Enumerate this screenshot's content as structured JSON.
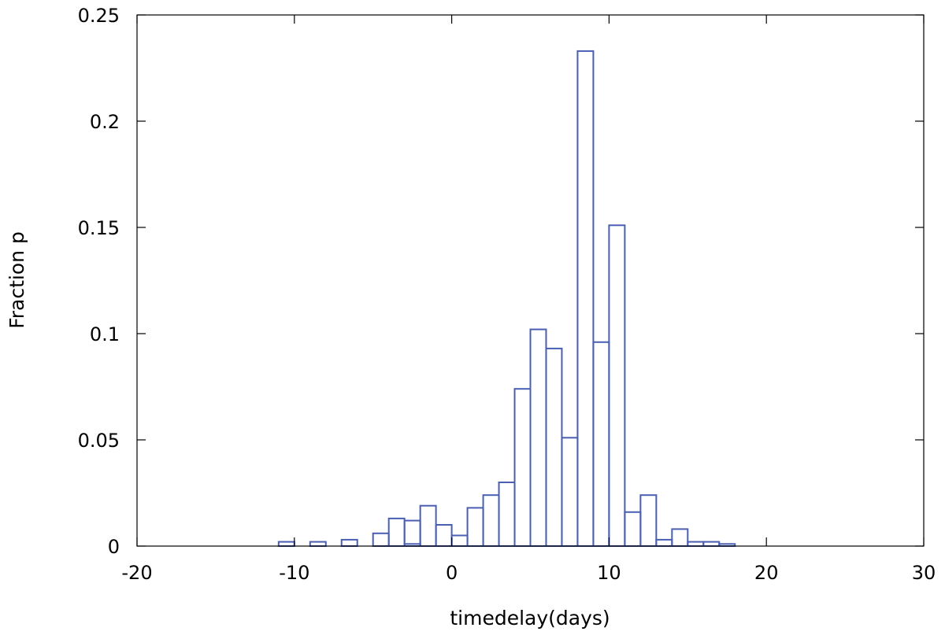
{
  "chart_data": {
    "type": "bar",
    "title": "",
    "xlabel": "timedelay(days)",
    "ylabel": "Fraction p",
    "xlim": [
      -20,
      30
    ],
    "ylim": [
      0,
      0.25
    ],
    "xticks": [
      "-20",
      "-10",
      "0",
      "10",
      "20",
      "30"
    ],
    "yticks": [
      "0",
      "0.05",
      "0.1",
      "0.15",
      "0.2",
      "0.25"
    ],
    "grid": false,
    "legend": "none",
    "bar_color": "#4a5fb4",
    "bin_width": 1,
    "bins": [
      {
        "x": -10.5,
        "value": 0.002
      },
      {
        "x": -8.5,
        "value": 0.002
      },
      {
        "x": -6.5,
        "value": 0.003
      },
      {
        "x": -4.5,
        "value": 0.006
      },
      {
        "x": -3.5,
        "value": 0.013
      },
      {
        "x": -2.5,
        "value": 0.012
      },
      {
        "x": -1.5,
        "value": 0.019
      },
      {
        "x": -0.5,
        "value": 0.01
      },
      {
        "x": 0.5,
        "value": 0.005
      },
      {
        "x": 1.5,
        "value": 0.018
      },
      {
        "x": 2.5,
        "value": 0.024
      },
      {
        "x": 3.5,
        "value": 0.03
      },
      {
        "x": 4.5,
        "value": 0.074
      },
      {
        "x": 5.5,
        "value": 0.102
      },
      {
        "x": 6.5,
        "value": 0.093
      },
      {
        "x": 7.5,
        "value": 0.051
      },
      {
        "x": 8.5,
        "value": 0.233
      },
      {
        "x": 9.5,
        "value": 0.096
      },
      {
        "x": 10.5,
        "value": 0.151
      },
      {
        "x": 11.5,
        "value": 0.016
      },
      {
        "x": 12.5,
        "value": 0.024
      },
      {
        "x": 13.5,
        "value": 0.003
      },
      {
        "x": 14.5,
        "value": 0.008
      },
      {
        "x": 15.5,
        "value": 0.002
      },
      {
        "x": 16.5,
        "value": 0.002
      },
      {
        "x": 17.5,
        "value": 0.001
      }
    ],
    "inner_bins": [
      {
        "x": -2.5,
        "value": 0.001
      }
    ]
  }
}
